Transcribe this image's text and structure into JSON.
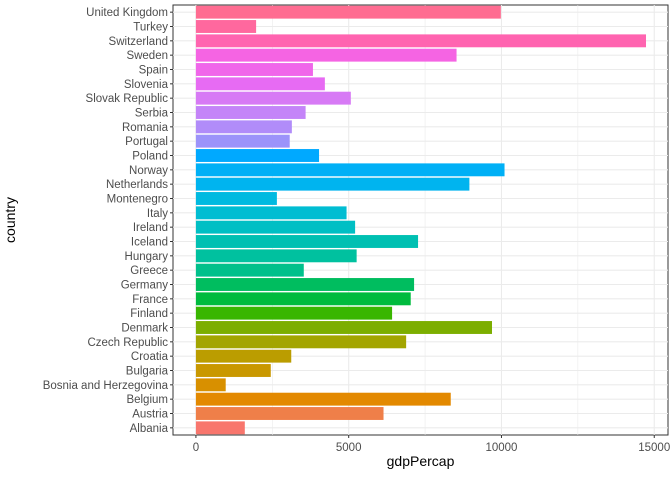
{
  "chart_data": {
    "type": "bar",
    "orientation": "horizontal",
    "xlabel": "gdpPercap",
    "ylabel": "country",
    "xlim": [
      -750,
      15450
    ],
    "xticks": [
      0,
      5000,
      10000,
      15000
    ],
    "xtick_labels": [
      "0",
      "5000",
      "10000",
      "15000"
    ],
    "grid": true,
    "legend": "none",
    "categories": [
      "United Kingdom",
      "Turkey",
      "Switzerland",
      "Sweden",
      "Spain",
      "Slovenia",
      "Slovak Republic",
      "Serbia",
      "Romania",
      "Portugal",
      "Poland",
      "Norway",
      "Netherlands",
      "Montenegro",
      "Italy",
      "Ireland",
      "Iceland",
      "Hungary",
      "Greece",
      "Germany",
      "France",
      "Finland",
      "Denmark",
      "Czech Republic",
      "Croatia",
      "Bulgaria",
      "Bosnia and Herzegovina",
      "Belgium",
      "Austria",
      "Albania"
    ],
    "values": [
      9980,
      1970,
      14730,
      8530,
      3830,
      4220,
      5070,
      3590,
      3140,
      3070,
      4030,
      10100,
      8950,
      2650,
      4930,
      5210,
      7270,
      5260,
      3530,
      7140,
      7030,
      6420,
      9690,
      6880,
      3120,
      2450,
      975,
      8340,
      6140,
      1600
    ],
    "colors": [
      "#FF6C91",
      "#FF689E",
      "#FF64B0",
      "#F564E3",
      "#F066EA",
      "#E76BF3",
      "#D77AF5",
      "#C484F8",
      "#B18CF9",
      "#9C93FA",
      "#00A9FF",
      "#00B0F6",
      "#00B4EF",
      "#00BAE0",
      "#00BDD2",
      "#00BFC4",
      "#00C0B2",
      "#00C19F",
      "#00C08B",
      "#00BD5F",
      "#00BB3E",
      "#39B600",
      "#7CAE00",
      "#A3A500",
      "#BB9D00",
      "#C99800",
      "#D89000",
      "#E38900",
      "#EF7F49",
      "#F8766D"
    ]
  }
}
